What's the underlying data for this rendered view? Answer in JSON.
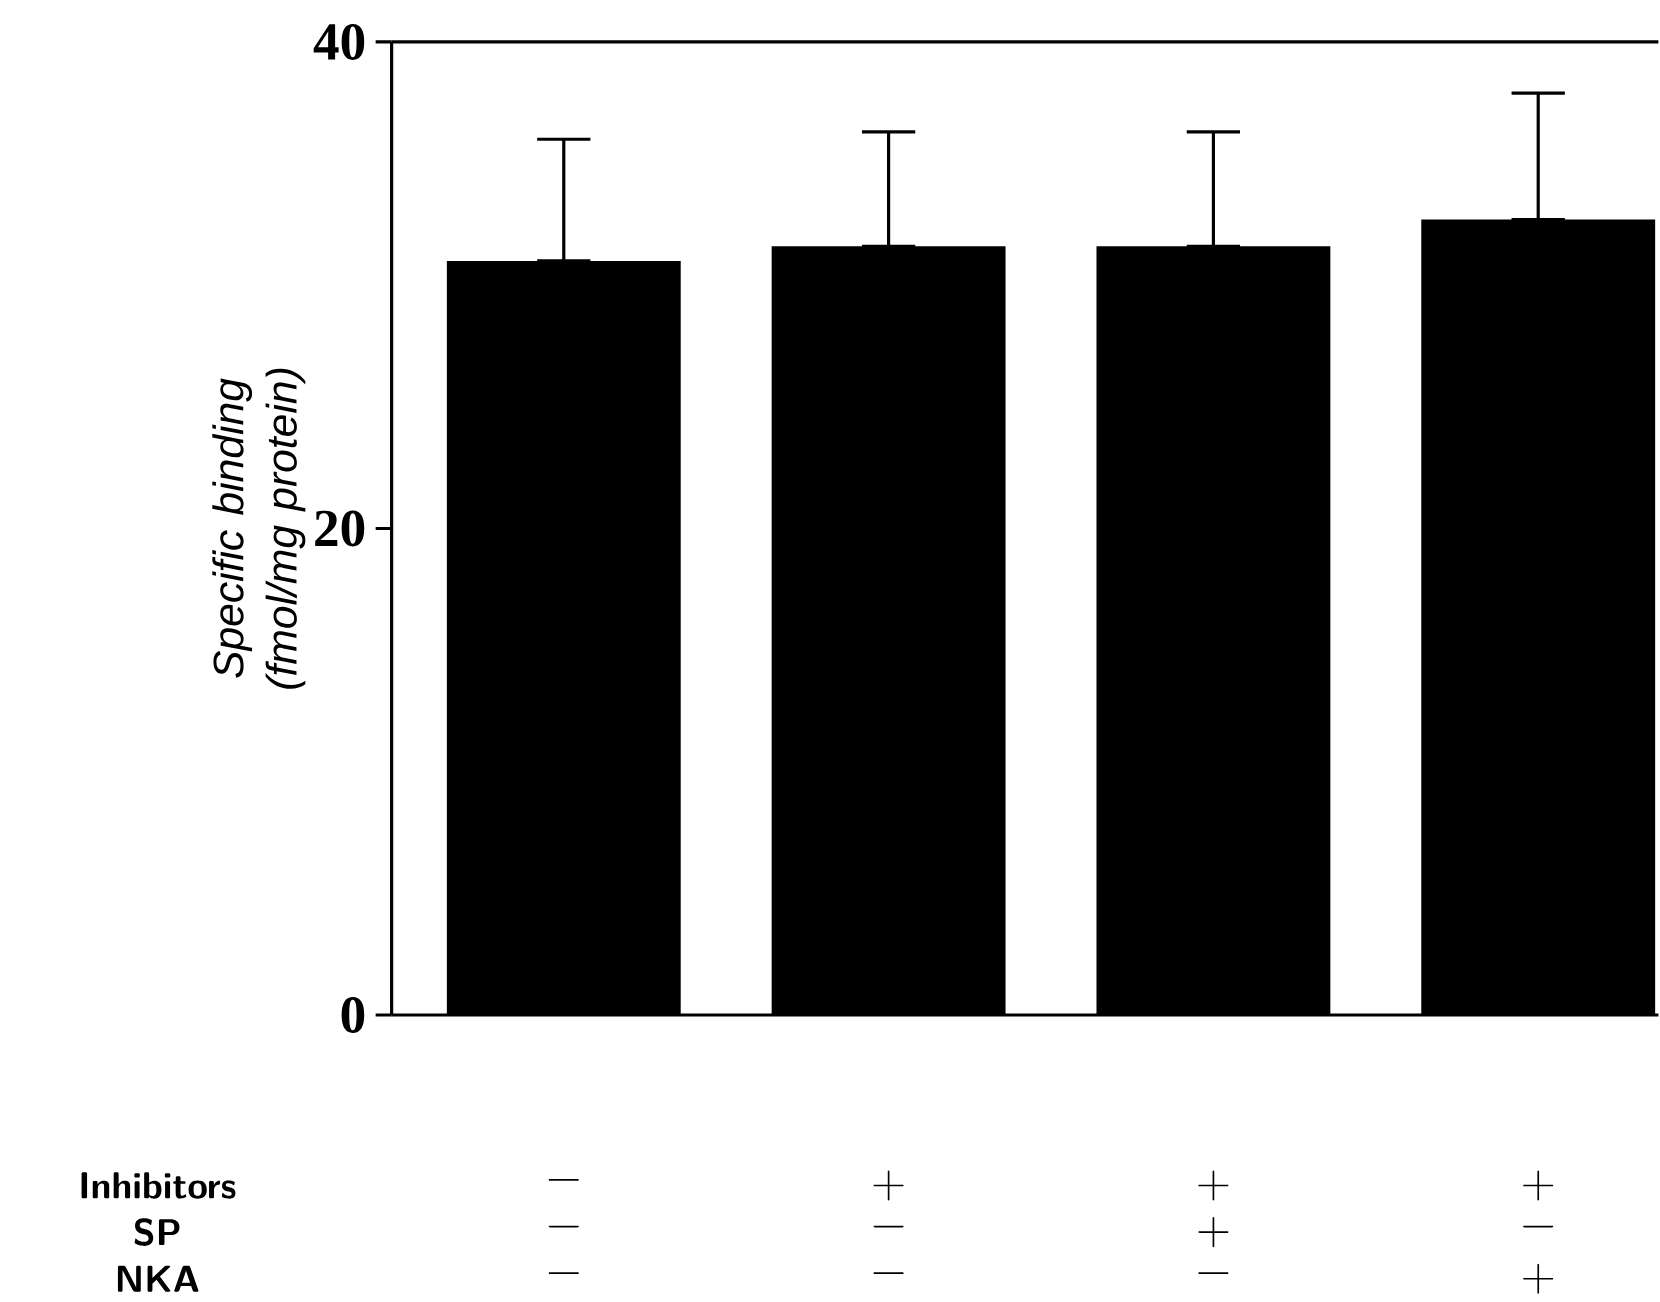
{
  "chart_data": {
    "type": "bar",
    "categories": [
      null,
      null,
      null,
      null
    ],
    "values": [
      31.0,
      31.6,
      31.6,
      32.7
    ],
    "errors": [
      [
        31.0,
        36.0
      ],
      [
        31.6,
        36.3
      ],
      [
        31.6,
        36.3
      ],
      [
        32.7,
        37.9
      ]
    ],
    "color": "#000000",
    "ylabel": "Specific binding (fmol/mg protein)",
    "ylim": [
      0,
      40
    ],
    "yticks": [
      0,
      20,
      40
    ],
    "annotations": [
      "Inhibitors",
      "SP",
      "NKA",
      "−",
      "+",
      "+",
      "+",
      "−",
      "−",
      "+",
      "−",
      "−",
      "−",
      "−",
      "+"
    ]
  }
}
